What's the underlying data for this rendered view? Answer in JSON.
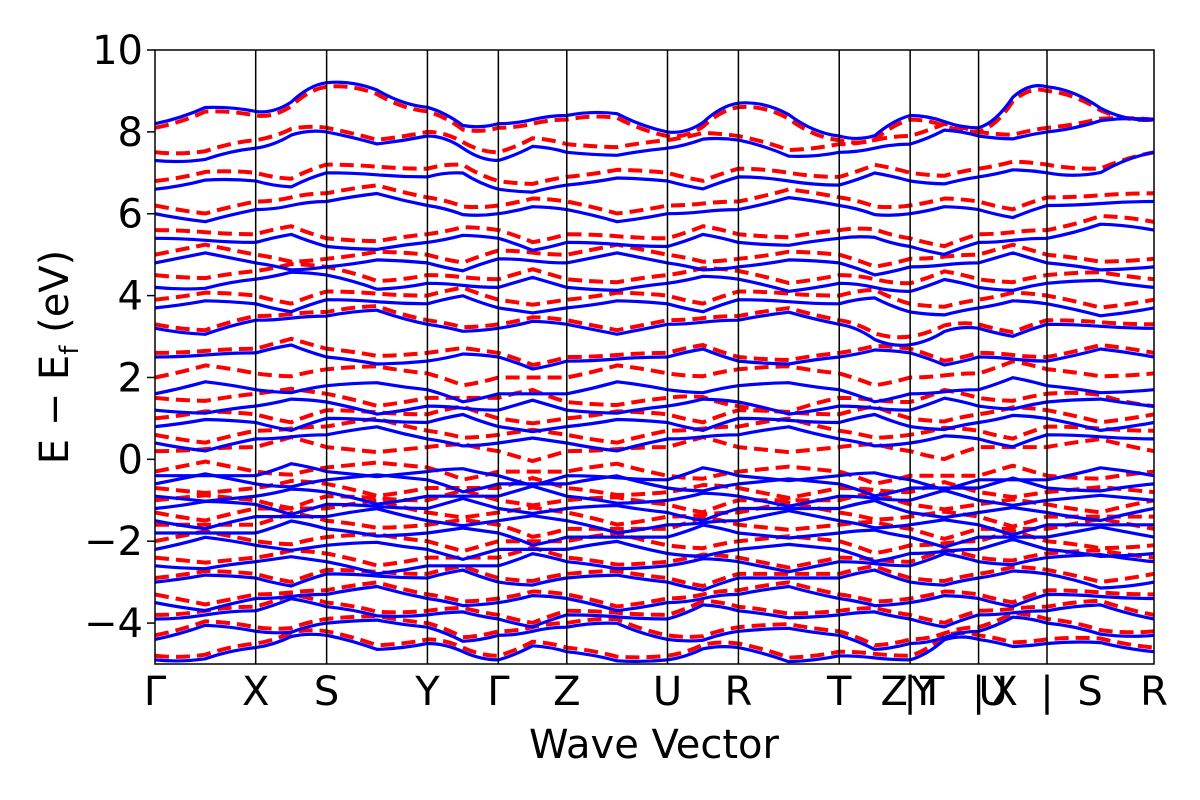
{
  "chart_data": {
    "type": "line",
    "title": "",
    "xlabel": "Wave Vector",
    "ylabel_main": "E − E",
    "ylabel_sub": "f",
    "ylabel_tail": " (eV)",
    "ylim": [
      -5,
      10
    ],
    "yticks": [
      -4,
      -2,
      0,
      2,
      4,
      6,
      8,
      10
    ],
    "ytick_labels": [
      "−4",
      "−2",
      "0",
      "2",
      "4",
      "6",
      "8",
      "10"
    ],
    "path_nodes": [
      {
        "pos": 0.0,
        "label": "Γ"
      },
      {
        "pos": 0.1008,
        "label": "X"
      },
      {
        "pos": 0.1718,
        "label": "S"
      },
      {
        "pos": 0.2727,
        "label": "Y"
      },
      {
        "pos": 0.3437,
        "label": "Γ"
      },
      {
        "pos": 0.4122,
        "label": "Z"
      },
      {
        "pos": 0.513,
        "label": "U"
      },
      {
        "pos": 0.584,
        "label": "R"
      },
      {
        "pos": 0.6849,
        "label": "T"
      },
      {
        "pos": 0.7559,
        "label": "Z | Y"
      },
      {
        "pos": 0.8244,
        "label": "T | U"
      },
      {
        "pos": 0.8929,
        "label": "X | S"
      },
      {
        "pos": 1.0,
        "label": "R"
      }
    ],
    "xtick_labels_drawn": [
      {
        "pos": 0.0,
        "label": "Γ"
      },
      {
        "pos": 0.1008,
        "label": "X"
      },
      {
        "pos": 0.1718,
        "label": "S"
      },
      {
        "pos": 0.2727,
        "label": "Y"
      },
      {
        "pos": 0.3437,
        "label": "Γ"
      },
      {
        "pos": 0.4122,
        "label": "Z"
      },
      {
        "pos": 0.513,
        "label": "U"
      },
      {
        "pos": 0.584,
        "label": "R"
      },
      {
        "pos": 0.6849,
        "label": "T"
      },
      {
        "pos": 0.74,
        "label": "Z"
      },
      {
        "pos": 0.7559,
        "label": "|"
      },
      {
        "pos": 0.769,
        "label": "Y"
      },
      {
        "pos": 0.778,
        "label": "T"
      },
      {
        "pos": 0.8244,
        "label": "|"
      },
      {
        "pos": 0.839,
        "label": "U"
      },
      {
        "pos": 0.85,
        "label": "X"
      },
      {
        "pos": 0.8929,
        "label": "|"
      },
      {
        "pos": 0.936,
        "label": "S"
      },
      {
        "pos": 1.0,
        "label": "R"
      }
    ],
    "series": [
      {
        "style": "solid",
        "color": "#0000ff",
        "bands_at_nodes": [
          [
            -4.9,
            -4.6,
            -4.3,
            -4.5,
            -4.9,
            -4.7,
            -4.9,
            -4.6,
            -4.8,
            -4.9,
            -4.4,
            -4.5,
            -4.7
          ],
          [
            -4.4,
            -4.2,
            -4.0,
            -4.1,
            -4.3,
            -4.1,
            -4.4,
            -4.2,
            -4.3,
            -4.5,
            -4.2,
            -4.0,
            -4.3
          ],
          [
            -3.9,
            -3.7,
            -3.6,
            -3.8,
            -3.9,
            -3.8,
            -3.9,
            -3.7,
            -3.8,
            -3.9,
            -3.8,
            -3.7,
            -3.9
          ],
          [
            -3.5,
            -3.4,
            -3.3,
            -3.4,
            -3.5,
            -3.4,
            -3.5,
            -3.3,
            -3.4,
            -3.5,
            -3.4,
            -3.3,
            -3.4
          ],
          [
            -3.0,
            -2.9,
            -2.8,
            -2.9,
            -3.0,
            -2.9,
            -3.0,
            -2.9,
            -2.9,
            -3.0,
            -2.9,
            -2.8,
            -3.0
          ],
          [
            -2.6,
            -2.5,
            -2.5,
            -2.6,
            -2.6,
            -2.5,
            -2.6,
            -2.5,
            -2.5,
            -2.6,
            -2.5,
            -2.4,
            -2.5
          ],
          [
            -2.2,
            -2.1,
            -2.1,
            -2.2,
            -2.2,
            -2.2,
            -2.3,
            -2.2,
            -2.2,
            -2.3,
            -2.2,
            -2.2,
            -2.3
          ],
          [
            -1.8,
            -1.8,
            -1.7,
            -1.8,
            -1.8,
            -1.9,
            -1.9,
            -1.8,
            -1.8,
            -1.9,
            -1.9,
            -1.9,
            -1.9
          ],
          [
            -1.5,
            -1.4,
            -1.4,
            -1.5,
            -1.5,
            -1.5,
            -1.6,
            -1.5,
            -1.5,
            -1.6,
            -1.6,
            -1.6,
            -1.6
          ],
          [
            -1.2,
            -1.1,
            -1.1,
            -1.2,
            -1.2,
            -1.2,
            -1.3,
            -1.2,
            -1.2,
            -1.3,
            -1.3,
            -1.3,
            -1.2
          ],
          [
            -0.9,
            -0.9,
            -0.8,
            -0.9,
            -0.9,
            -0.9,
            -1.0,
            -0.9,
            -0.9,
            -1.0,
            -1.0,
            -1.0,
            -1.0
          ],
          [
            -0.6,
            -0.6,
            -0.5,
            -0.5,
            -0.6,
            -0.6,
            -0.7,
            -0.6,
            -0.6,
            -0.7,
            -0.7,
            -0.7,
            -0.6
          ],
          [
            -0.4,
            -0.4,
            -0.3,
            -0.3,
            -0.4,
            -0.4,
            -0.5,
            -0.4,
            -0.4,
            -0.5,
            -0.5,
            -0.5,
            -0.4
          ],
          [
            0.4,
            0.5,
            0.6,
            0.5,
            0.4,
            0.4,
            0.5,
            0.6,
            0.5,
            0.4,
            0.5,
            0.6,
            0.5
          ],
          [
            0.8,
            0.9,
            1.0,
            0.9,
            0.8,
            0.8,
            0.9,
            1.0,
            0.9,
            0.8,
            0.9,
            1.0,
            0.9
          ],
          [
            1.2,
            1.3,
            1.4,
            1.3,
            1.2,
            1.2,
            1.3,
            1.4,
            1.3,
            1.2,
            1.3,
            1.4,
            1.3
          ],
          [
            1.6,
            1.7,
            1.8,
            1.7,
            1.6,
            1.6,
            1.7,
            1.8,
            1.7,
            1.6,
            1.7,
            1.8,
            1.7
          ],
          [
            2.5,
            2.6,
            2.5,
            2.4,
            2.5,
            2.4,
            2.5,
            2.4,
            2.5,
            2.6,
            2.5,
            2.4,
            2.5
          ],
          [
            3.2,
            3.4,
            3.5,
            3.3,
            3.2,
            3.3,
            3.3,
            3.4,
            3.3,
            2.8,
            3.2,
            3.3,
            3.2
          ],
          [
            3.7,
            3.8,
            3.9,
            3.8,
            3.7,
            3.7,
            3.8,
            3.9,
            3.8,
            3.6,
            3.7,
            3.8,
            3.7
          ],
          [
            4.2,
            4.4,
            4.5,
            4.3,
            4.2,
            4.2,
            4.3,
            4.4,
            4.3,
            4.1,
            4.2,
            4.3,
            4.2
          ],
          [
            4.8,
            4.8,
            4.7,
            4.8,
            4.9,
            4.8,
            4.8,
            4.7,
            4.8,
            4.7,
            4.8,
            4.8,
            4.7
          ],
          [
            5.4,
            5.3,
            5.2,
            5.3,
            5.4,
            5.3,
            5.2,
            5.3,
            5.4,
            5.2,
            5.3,
            5.4,
            5.6
          ],
          [
            6.0,
            6.1,
            6.3,
            6.2,
            6.0,
            6.1,
            6.0,
            6.1,
            6.2,
            6.0,
            6.1,
            6.2,
            6.3
          ],
          [
            6.6,
            6.8,
            7.0,
            6.9,
            6.6,
            6.7,
            6.8,
            6.9,
            6.7,
            6.8,
            6.9,
            7.0,
            7.5
          ],
          [
            7.3,
            7.6,
            8.0,
            7.9,
            7.3,
            7.5,
            7.6,
            7.8,
            7.5,
            7.7,
            7.9,
            8.0,
            8.3
          ],
          [
            8.2,
            8.5,
            9.2,
            8.6,
            8.2,
            8.4,
            8.0,
            8.7,
            7.9,
            8.4,
            8.1,
            9.1,
            8.3
          ]
        ]
      },
      {
        "style": "dashed",
        "color": "#ff0000",
        "bands_at_nodes": [
          [
            -4.8,
            -4.5,
            -4.2,
            -4.4,
            -4.8,
            -4.6,
            -4.8,
            -4.5,
            -4.7,
            -4.8,
            -4.3,
            -4.4,
            -4.6
          ],
          [
            -4.3,
            -4.1,
            -3.9,
            -4.0,
            -4.2,
            -4.0,
            -4.3,
            -4.1,
            -4.2,
            -4.4,
            -4.1,
            -3.9,
            -4.2
          ],
          [
            -3.8,
            -3.6,
            -3.5,
            -3.7,
            -3.8,
            -3.7,
            -3.8,
            -3.6,
            -3.7,
            -3.8,
            -3.7,
            -3.6,
            -3.8
          ],
          [
            -3.3,
            -3.3,
            -3.2,
            -3.3,
            -3.4,
            -3.3,
            -3.4,
            -3.2,
            -3.3,
            -3.4,
            -3.3,
            -3.2,
            -3.3
          ],
          [
            -2.9,
            -2.8,
            -2.7,
            -2.8,
            -2.9,
            -2.8,
            -2.9,
            -2.8,
            -2.8,
            -2.9,
            -2.8,
            -2.7,
            -2.8
          ],
          [
            -2.4,
            -2.4,
            -2.3,
            -2.4,
            -2.4,
            -2.4,
            -2.5,
            -2.4,
            -2.4,
            -2.5,
            -2.4,
            -2.3,
            -2.4
          ],
          [
            -2.0,
            -2.0,
            -1.9,
            -2.0,
            -2.0,
            -2.0,
            -2.1,
            -2.0,
            -2.0,
            -2.1,
            -2.0,
            -2.0,
            -2.1
          ],
          [
            -1.6,
            -1.6,
            -1.5,
            -1.6,
            -1.6,
            -1.7,
            -1.7,
            -1.6,
            -1.6,
            -1.7,
            -1.7,
            -1.7,
            -1.7
          ],
          [
            -1.3,
            -1.2,
            -1.2,
            -1.3,
            -1.3,
            -1.3,
            -1.4,
            -1.3,
            -1.3,
            -1.4,
            -1.4,
            -1.4,
            -1.4
          ],
          [
            -1.0,
            -1.0,
            -0.9,
            -1.0,
            -1.0,
            -1.0,
            -1.1,
            -1.0,
            -1.0,
            -1.1,
            -1.1,
            -1.1,
            -1.0
          ],
          [
            -0.7,
            -0.7,
            -0.6,
            -0.7,
            -0.7,
            -0.7,
            -0.8,
            -0.7,
            -0.7,
            -0.8,
            -0.8,
            -0.8,
            -0.8
          ],
          [
            -0.3,
            -0.3,
            -0.2,
            -0.2,
            -0.3,
            -0.3,
            -0.4,
            -0.3,
            -0.3,
            -0.4,
            -0.4,
            -0.4,
            -0.3
          ],
          [
            0.2,
            0.3,
            0.3,
            0.3,
            0.2,
            0.2,
            0.3,
            0.3,
            0.3,
            0.2,
            0.3,
            0.3,
            0.2
          ],
          [
            0.6,
            0.7,
            0.8,
            0.7,
            0.6,
            0.6,
            0.7,
            0.8,
            0.7,
            0.6,
            0.7,
            0.8,
            0.7
          ],
          [
            1.0,
            1.1,
            1.2,
            1.1,
            1.0,
            1.0,
            1.1,
            1.2,
            1.1,
            1.0,
            1.1,
            1.2,
            1.1
          ],
          [
            1.5,
            1.6,
            1.6,
            1.5,
            1.5,
            1.4,
            1.5,
            1.3,
            1.5,
            1.4,
            1.5,
            1.6,
            1.3
          ],
          [
            2.0,
            2.1,
            2.2,
            2.1,
            2.0,
            2.0,
            2.1,
            2.2,
            2.1,
            2.0,
            2.1,
            2.2,
            2.1
          ],
          [
            2.6,
            2.7,
            2.7,
            2.6,
            2.6,
            2.5,
            2.6,
            2.5,
            2.6,
            2.7,
            2.6,
            2.5,
            2.6
          ],
          [
            3.3,
            3.5,
            3.6,
            3.4,
            3.3,
            3.4,
            3.4,
            3.5,
            3.4,
            3.0,
            3.3,
            3.4,
            3.3
          ],
          [
            3.9,
            4.0,
            4.1,
            4.0,
            3.9,
            3.9,
            4.0,
            4.1,
            4.0,
            3.8,
            3.9,
            4.0,
            3.9
          ],
          [
            4.5,
            4.6,
            4.7,
            4.5,
            4.4,
            4.4,
            4.5,
            4.6,
            4.5,
            4.3,
            4.4,
            4.5,
            4.4
          ],
          [
            5.0,
            5.0,
            4.9,
            5.0,
            5.1,
            5.0,
            5.0,
            4.9,
            5.0,
            4.9,
            5.0,
            5.0,
            4.9
          ],
          [
            5.6,
            5.5,
            5.4,
            5.5,
            5.6,
            5.5,
            5.4,
            5.5,
            5.6,
            5.4,
            5.5,
            5.6,
            5.8
          ],
          [
            6.2,
            6.3,
            6.5,
            6.4,
            6.2,
            6.3,
            6.2,
            6.3,
            6.4,
            6.2,
            6.3,
            6.4,
            6.5
          ],
          [
            6.8,
            7.0,
            7.2,
            7.1,
            6.8,
            6.9,
            7.0,
            7.1,
            6.9,
            7.0,
            7.1,
            7.2,
            7.5
          ],
          [
            7.5,
            7.8,
            8.1,
            8.0,
            7.5,
            7.7,
            7.8,
            7.9,
            7.7,
            7.9,
            8.0,
            8.1,
            8.3
          ],
          [
            8.1,
            8.4,
            9.1,
            8.5,
            8.1,
            8.3,
            7.9,
            8.6,
            7.8,
            8.3,
            8.0,
            9.0,
            8.3
          ]
        ]
      }
    ]
  }
}
